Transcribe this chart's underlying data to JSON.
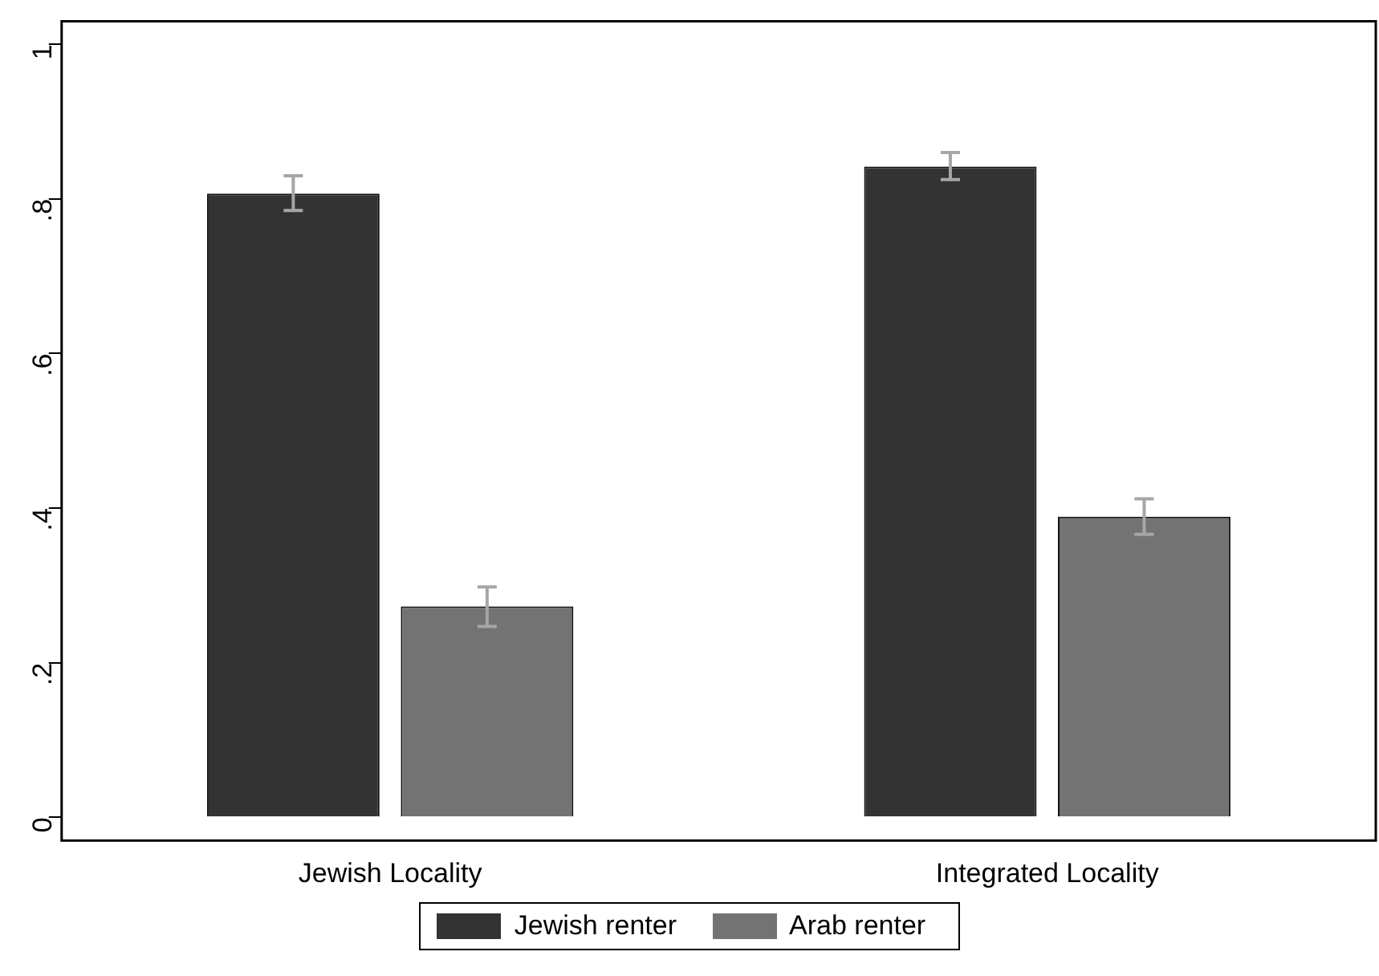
{
  "chart_data": {
    "type": "bar",
    "categories": [
      "Jewish Locality",
      "Integrated Locality"
    ],
    "series": [
      {
        "name": "Jewish renter",
        "color": "#333333",
        "values": [
          0.807,
          0.842
        ],
        "errors": [
          [
            0.785,
            0.83
          ],
          [
            0.825,
            0.86
          ]
        ]
      },
      {
        "name": "Arab renter",
        "color": "#737373",
        "values": [
          0.273,
          0.389
        ],
        "errors": [
          [
            0.247,
            0.298
          ],
          [
            0.366,
            0.412
          ]
        ]
      }
    ],
    "ylim": [
      -0.03,
      1.03
    ],
    "yticks": [
      0,
      {
        "value": 0.2,
        "label": ".2"
      },
      {
        "value": 0.4,
        "label": ".4"
      },
      {
        "value": 0.6,
        "label": ".6"
      },
      {
        "value": 0.8,
        "label": ".8"
      },
      1
    ],
    "legend": "bottom"
  }
}
